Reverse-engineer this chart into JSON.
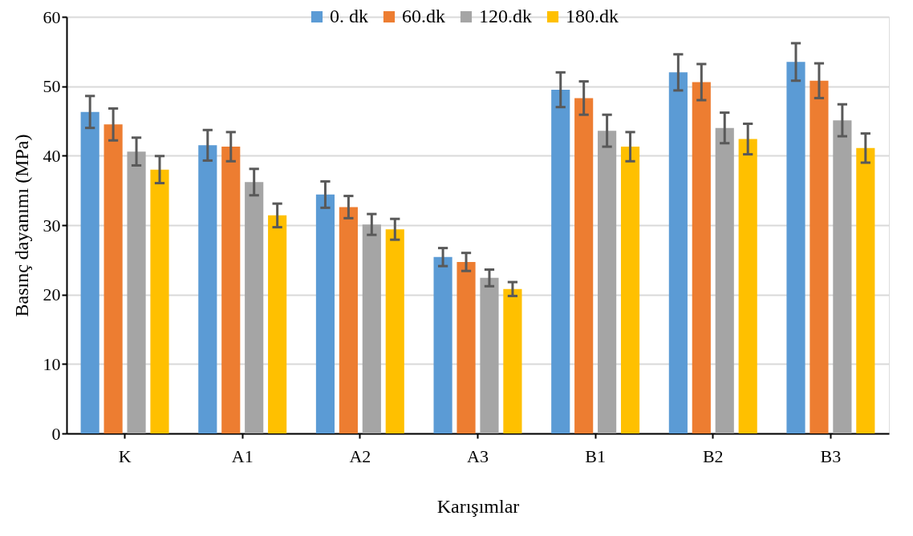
{
  "chart_data": {
    "type": "bar",
    "xlabel": "Karışımlar",
    "ylabel": "Basınç dayanımı (MPa)",
    "categories": [
      "K",
      "A1",
      "A2",
      "A3",
      "B1",
      "B2",
      "B3"
    ],
    "series": [
      {
        "name": "0. dk",
        "color": "#5b9bd5",
        "values": [
          46.3,
          41.5,
          34.4,
          25.4,
          49.5,
          52.0,
          53.5
        ],
        "errors": [
          2.3,
          2.2,
          1.9,
          1.3,
          2.5,
          2.6,
          2.7
        ]
      },
      {
        "name": "60.dk",
        "color": "#ed7d31",
        "values": [
          44.5,
          41.3,
          32.6,
          24.7,
          48.3,
          50.6,
          50.8
        ],
        "errors": [
          2.3,
          2.1,
          1.6,
          1.3,
          2.4,
          2.6,
          2.5
        ]
      },
      {
        "name": "120.dk",
        "color": "#a5a5a5",
        "values": [
          40.6,
          36.2,
          30.1,
          22.4,
          43.6,
          44.0,
          45.1
        ],
        "errors": [
          2.0,
          1.9,
          1.5,
          1.2,
          2.3,
          2.2,
          2.3
        ]
      },
      {
        "name": "180.dk",
        "color": "#ffc000",
        "values": [
          38.0,
          31.4,
          29.4,
          20.8,
          41.3,
          42.4,
          41.1
        ],
        "errors": [
          1.95,
          1.7,
          1.5,
          1.0,
          2.1,
          2.2,
          2.1
        ]
      }
    ],
    "ylim": [
      0,
      60
    ],
    "yticks": [
      0,
      10,
      20,
      30,
      40,
      50,
      60
    ],
    "grid": "y",
    "legend": "top"
  }
}
